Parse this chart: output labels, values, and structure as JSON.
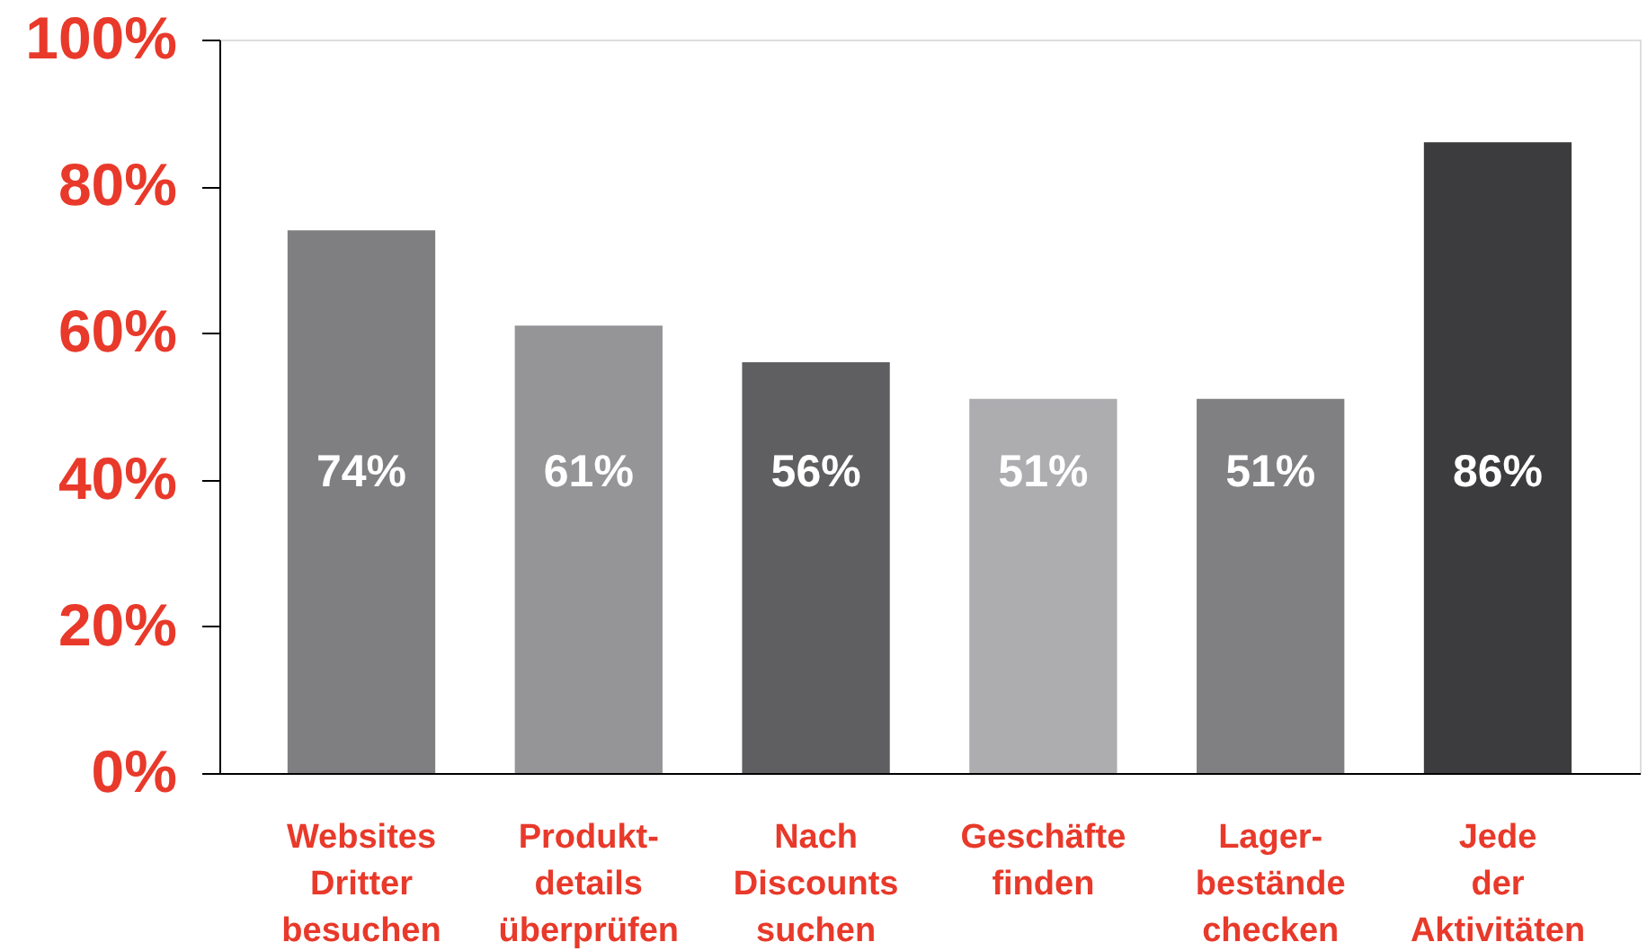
{
  "chart_data": {
    "type": "bar",
    "categories": [
      "Websites\nDritter\nbesuchen",
      "Produkt-\ndetails\nüberprüfen",
      "Nach\nDiscounts\nsuchen",
      "Geschäfte\nfinden",
      "Lager-\nbestände\nchecken",
      "Jede\nder\nAktivitäten"
    ],
    "values": [
      74,
      61,
      56,
      51,
      51,
      86
    ],
    "colors": [
      "#7f7f82",
      "#959598",
      "#5f5f62",
      "#adadb0",
      "#808083",
      "#3c3c3e"
    ],
    "value_labels": [
      "74%",
      "61%",
      "56%",
      "51%",
      "51%",
      "86%"
    ],
    "ylim": [
      0,
      100
    ],
    "yticks": [
      {
        "value": 0,
        "label": "0%"
      },
      {
        "value": 20,
        "label": "20%"
      },
      {
        "value": 40,
        "label": "40%"
      },
      {
        "value": 60,
        "label": "60%"
      },
      {
        "value": 80,
        "label": "80%"
      },
      {
        "value": 100,
        "label": "100%"
      }
    ],
    "grid": false
  }
}
